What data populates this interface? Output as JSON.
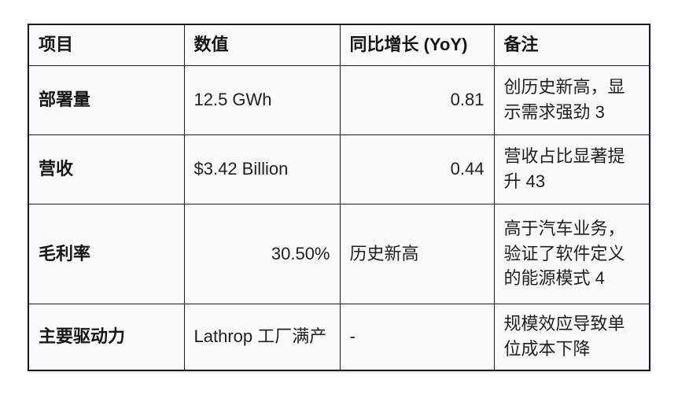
{
  "table": {
    "columns": [
      {
        "label": "项目"
      },
      {
        "label": "数值"
      },
      {
        "label": "同比增长 (YoY)"
      },
      {
        "label": "备注"
      }
    ],
    "rows": [
      {
        "item": "部署量",
        "value": "12.5 GWh",
        "yoy": "0.81",
        "note": "创历史新高，显示需求强劲 3"
      },
      {
        "item": "营收",
        "value": "$3.42 Billion",
        "yoy": "0.44",
        "note": "营收占比显著提升 43"
      },
      {
        "item": "毛利率",
        "value": "30.50%",
        "yoy": "历史新高",
        "note": "高于汽车业务，验证了软件定义的能源模式 4"
      },
      {
        "item": "主要驱动力",
        "value": "Lathrop 工厂满产",
        "yoy": "-",
        "note": "规模效应导致单位成本下降"
      }
    ]
  },
  "colors": {
    "page_bg": "#ffffff",
    "cell_bg": "#f8f9fc",
    "border": "#1a1a1a",
    "text": "#1f1f1f"
  }
}
